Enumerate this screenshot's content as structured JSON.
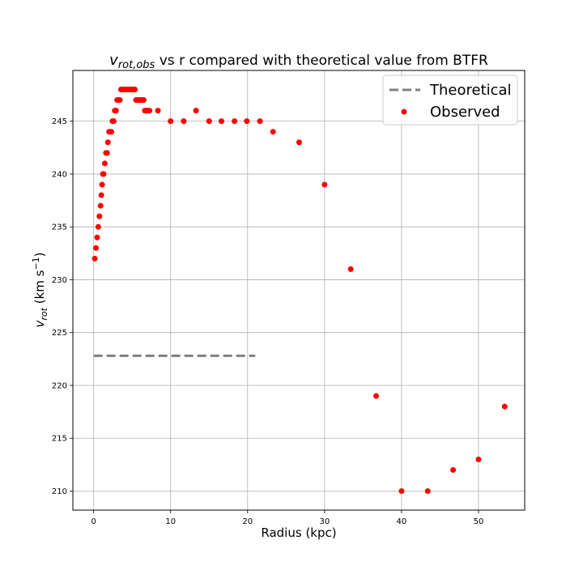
{
  "chart_data": {
    "type": "scatter",
    "title_prefix": "v",
    "title_sub": "rot,obs",
    "title_suffix": " vs r compared with theoretical value from BTFR",
    "xlabel": "Radius (kpc)",
    "ylabel_prefix": "v",
    "ylabel_sub": "rot",
    "ylabel_suffix_a": " (km s",
    "ylabel_sup": "−1",
    "ylabel_suffix_b": ")",
    "xlim": [
      -2.7,
      56
    ],
    "ylim": [
      208.2,
      249.8
    ],
    "xticks": [
      0,
      10,
      20,
      30,
      40,
      50
    ],
    "yticks": [
      210,
      215,
      220,
      225,
      230,
      235,
      240,
      245
    ],
    "grid": true,
    "legend_position": "top-right",
    "series": [
      {
        "name": "Theoretical",
        "kind": "line",
        "style": "dashed",
        "color": "#808080",
        "x": [
          0.0,
          21.0
        ],
        "y": [
          222.8,
          222.8
        ]
      },
      {
        "name": "Observed",
        "kind": "scatter",
        "color": "#ff0000",
        "points": [
          [
            0.15,
            232
          ],
          [
            0.3,
            233
          ],
          [
            0.45,
            234
          ],
          [
            0.6,
            235
          ],
          [
            0.75,
            236
          ],
          [
            0.9,
            237
          ],
          [
            1.0,
            238
          ],
          [
            1.1,
            239
          ],
          [
            1.2,
            240
          ],
          [
            1.3,
            240
          ],
          [
            1.45,
            241
          ],
          [
            1.6,
            242
          ],
          [
            1.75,
            242
          ],
          [
            1.85,
            243
          ],
          [
            2.0,
            244
          ],
          [
            2.15,
            244
          ],
          [
            2.3,
            244
          ],
          [
            2.45,
            245
          ],
          [
            2.6,
            245
          ],
          [
            2.75,
            246
          ],
          [
            2.9,
            246
          ],
          [
            3.05,
            247
          ],
          [
            3.2,
            247
          ],
          [
            3.4,
            247
          ],
          [
            3.55,
            248
          ],
          [
            3.7,
            248
          ],
          [
            3.85,
            248
          ],
          [
            4.0,
            248
          ],
          [
            4.15,
            248
          ],
          [
            4.3,
            248
          ],
          [
            4.45,
            248
          ],
          [
            4.6,
            248
          ],
          [
            4.75,
            248
          ],
          [
            4.9,
            248
          ],
          [
            5.05,
            248
          ],
          [
            5.2,
            248
          ],
          [
            5.35,
            248
          ],
          [
            5.5,
            247
          ],
          [
            5.7,
            247
          ],
          [
            5.9,
            247
          ],
          [
            6.1,
            247
          ],
          [
            6.3,
            247
          ],
          [
            6.5,
            247
          ],
          [
            6.65,
            246
          ],
          [
            6.85,
            246
          ],
          [
            7.05,
            246
          ],
          [
            7.25,
            246
          ],
          [
            8.35,
            246
          ],
          [
            10.0,
            245
          ],
          [
            11.7,
            245
          ],
          [
            13.3,
            246
          ],
          [
            15.0,
            245
          ],
          [
            16.6,
            245
          ],
          [
            18.3,
            245
          ],
          [
            19.9,
            245
          ],
          [
            21.6,
            245
          ],
          [
            23.3,
            244
          ],
          [
            26.7,
            243
          ],
          [
            30.0,
            239
          ],
          [
            33.4,
            231
          ],
          [
            36.7,
            219
          ],
          [
            40.0,
            210
          ],
          [
            43.4,
            210
          ],
          [
            46.7,
            212
          ],
          [
            50.0,
            213
          ],
          [
            53.4,
            218
          ]
        ]
      }
    ]
  }
}
